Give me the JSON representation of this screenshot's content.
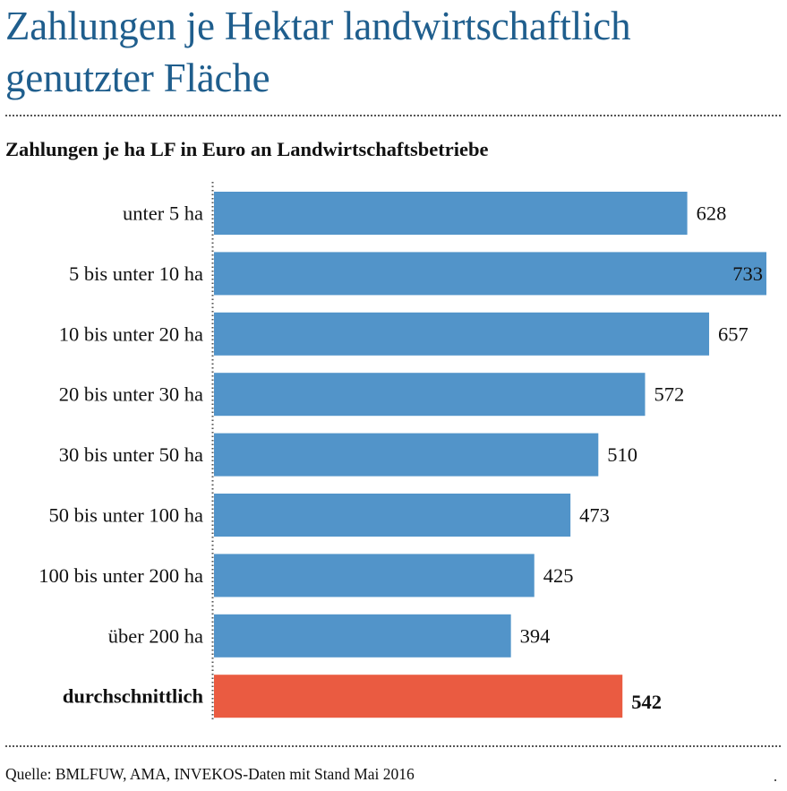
{
  "title": "Zahlungen je Hektar landwirtschaftlich genutzter Fläche",
  "subtitle": "Zahlungen je ha LF in Euro an Landwirtschaftsbetriebe",
  "source": "Quelle: BMLFUW, AMA, INVEKOS-Daten mit Stand Mai 2016",
  "colors": {
    "title": "#1f5e8d",
    "bar": "#5294c9",
    "highlight_bar": "#ea5b41",
    "text": "#111111",
    "rule": "#555555"
  },
  "chart_data": {
    "type": "bar",
    "orientation": "horizontal",
    "title": "Zahlungen je ha LF in Euro an Landwirtschaftsbetriebe",
    "xlabel": "",
    "ylabel": "",
    "categories": [
      "unter 5 ha",
      "5 bis unter 10 ha",
      "10 bis unter 20 ha",
      "20 bis unter 30 ha",
      "30 bis unter 50 ha",
      "50 bis unter 100 ha",
      "100 bis unter 200 ha",
      "über 200 ha",
      "durchschnittlich"
    ],
    "values": [
      628,
      733,
      657,
      572,
      510,
      473,
      425,
      394,
      542
    ],
    "highlighted_category": "durchschnittlich",
    "xlim": [
      0,
      733
    ],
    "grid": false,
    "data_labels": true
  }
}
